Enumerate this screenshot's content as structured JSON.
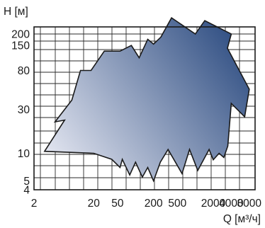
{
  "chart_data": {
    "type": "area",
    "title": "",
    "ylabel": "H [м]",
    "xlabel": "Q [м³/ч]",
    "x_scale": "log",
    "y_scale": "log",
    "xlim": [
      2,
      10000
    ],
    "ylim": [
      4,
      300
    ],
    "xticks": [
      "2",
      "20",
      "50",
      "200",
      "500",
      "2000",
      "4000",
      "8000"
    ],
    "yticks": [
      "200",
      "150",
      "80",
      "30",
      "10",
      "5",
      "4"
    ],
    "grid": true,
    "legend": "none",
    "gradient_colors": [
      "#eeeff7",
      "#28487e"
    ],
    "envelope": [
      [
        3.0,
        10.5
      ],
      [
        6.5,
        23
      ],
      [
        4.5,
        22
      ],
      [
        8.6,
        38
      ],
      [
        12,
        80
      ],
      [
        18,
        80
      ],
      [
        30,
        130
      ],
      [
        55,
        130
      ],
      [
        85,
        150
      ],
      [
        115,
        110
      ],
      [
        160,
        175
      ],
      [
        200,
        155
      ],
      [
        265,
        185
      ],
      [
        400,
        300
      ],
      [
        1000,
        200
      ],
      [
        1440,
        280
      ],
      [
        4000,
        200
      ],
      [
        3450,
        140
      ],
      [
        8000,
        50
      ],
      [
        6700,
        25
      ],
      [
        4000,
        35
      ],
      [
        3500,
        12
      ],
      [
        3000,
        9
      ],
      [
        2500,
        10
      ],
      [
        2000,
        8.5
      ],
      [
        1700,
        11
      ],
      [
        1100,
        6.5
      ],
      [
        800,
        11
      ],
      [
        600,
        6
      ],
      [
        350,
        11
      ],
      [
        260,
        8
      ],
      [
        200,
        5
      ],
      [
        160,
        7
      ],
      [
        130,
        5.5
      ],
      [
        100,
        8
      ],
      [
        80,
        5.8
      ],
      [
        60,
        8.6
      ],
      [
        55,
        7
      ],
      [
        40,
        8.6
      ],
      [
        20,
        10
      ],
      [
        3.0,
        10.5
      ]
    ]
  }
}
